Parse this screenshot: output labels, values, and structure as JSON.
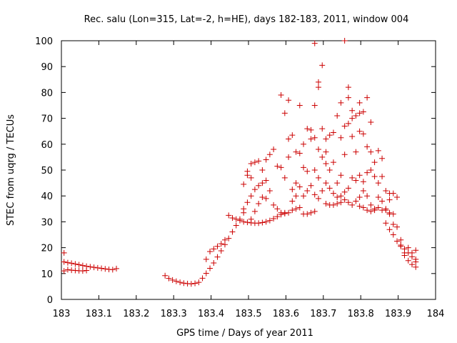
{
  "chart_data": {
    "type": "scatter",
    "title": "Rec. salu (Lon=315, Lat=-2, h=HE), days 182-183, 2011, window 004",
    "xlabel": "GPS time / Days of year 2011",
    "ylabel": "STEC from uqrg / TECUs",
    "xlim": [
      183,
      184
    ],
    "ylim": [
      0,
      100
    ],
    "xticks": [
      183,
      183.1,
      183.2,
      183.3,
      183.4,
      183.5,
      183.6,
      183.7,
      183.8,
      183.9,
      184
    ],
    "xtick_labels": [
      "183",
      "183.1",
      "183.2",
      "183.3",
      "183.4",
      "183.5",
      "183.6",
      "183.7",
      "183.8",
      "183.9",
      "184"
    ],
    "yticks": [
      0,
      10,
      20,
      30,
      40,
      50,
      60,
      70,
      80,
      90,
      100
    ],
    "ytick_labels": [
      "0",
      "10",
      "20",
      "30",
      "40",
      "50",
      "60",
      "70",
      "80",
      "90",
      "100"
    ],
    "grid": false,
    "marker": "+",
    "color": "#cc0000",
    "series": [
      {
        "name": "STEC",
        "points": [
          [
            183.007,
            18
          ],
          [
            183.007,
            14.5
          ],
          [
            183.007,
            11
          ],
          [
            183.017,
            14.2
          ],
          [
            183.017,
            11.5
          ],
          [
            183.027,
            14
          ],
          [
            183.027,
            11.3
          ],
          [
            183.037,
            13.7
          ],
          [
            183.037,
            11.2
          ],
          [
            183.047,
            13.4
          ],
          [
            183.047,
            11.1
          ],
          [
            183.057,
            13.1
          ],
          [
            183.057,
            11
          ],
          [
            183.067,
            12.8
          ],
          [
            183.067,
            11.2
          ],
          [
            183.077,
            12.6
          ],
          [
            183.087,
            12.4
          ],
          [
            183.097,
            12.2
          ],
          [
            183.107,
            12
          ],
          [
            183.117,
            11.8
          ],
          [
            183.127,
            11.6
          ],
          [
            183.137,
            11.5
          ],
          [
            183.147,
            11.9
          ],
          [
            183.277,
            9.2
          ],
          [
            183.287,
            8.1
          ],
          [
            183.297,
            7.5
          ],
          [
            183.307,
            7
          ],
          [
            183.317,
            6.6
          ],
          [
            183.327,
            6.3
          ],
          [
            183.337,
            6.1
          ],
          [
            183.347,
            6
          ],
          [
            183.357,
            6.2
          ],
          [
            183.367,
            6.6
          ],
          [
            183.377,
            8.2
          ],
          [
            183.387,
            10.1
          ],
          [
            183.397,
            12
          ],
          [
            183.407,
            14.1
          ],
          [
            183.417,
            16.4
          ],
          [
            183.427,
            18.8
          ],
          [
            183.437,
            21.2
          ],
          [
            183.447,
            23.6
          ],
          [
            183.457,
            26.1
          ],
          [
            183.467,
            28.6
          ],
          [
            183.477,
            31
          ],
          [
            183.487,
            33.5
          ],
          [
            183.387,
            15.5
          ],
          [
            183.397,
            18.5
          ],
          [
            183.407,
            19.5
          ],
          [
            183.417,
            20.5
          ],
          [
            183.427,
            21.5
          ],
          [
            183.437,
            23
          ],
          [
            183.447,
            32.5
          ],
          [
            183.457,
            31.5
          ],
          [
            183.467,
            31
          ],
          [
            183.477,
            30.5
          ],
          [
            183.487,
            30
          ],
          [
            183.497,
            29.8
          ],
          [
            183.507,
            29.6
          ],
          [
            183.517,
            29.5
          ],
          [
            183.527,
            29.5
          ],
          [
            183.537,
            29.7
          ],
          [
            183.547,
            30
          ],
          [
            183.557,
            30.5
          ],
          [
            183.567,
            31.2
          ],
          [
            183.577,
            32
          ],
          [
            183.587,
            32.8
          ],
          [
            183.597,
            33.5
          ],
          [
            183.487,
            35
          ],
          [
            183.497,
            37.5
          ],
          [
            183.507,
            40
          ],
          [
            183.517,
            42.5
          ],
          [
            183.527,
            44
          ],
          [
            183.537,
            45
          ],
          [
            183.547,
            46
          ],
          [
            183.487,
            44.5
          ],
          [
            183.497,
            48
          ],
          [
            183.497,
            49.5
          ],
          [
            183.507,
            47
          ],
          [
            183.507,
            52.5
          ],
          [
            183.517,
            53
          ],
          [
            183.527,
            53.5
          ],
          [
            183.537,
            50
          ],
          [
            183.547,
            54
          ],
          [
            183.557,
            56
          ],
          [
            183.567,
            58
          ],
          [
            183.577,
            51.5
          ],
          [
            183.587,
            51
          ],
          [
            183.587,
            79
          ],
          [
            183.597,
            72
          ],
          [
            183.597,
            47
          ],
          [
            183.607,
            77
          ],
          [
            183.607,
            55
          ],
          [
            183.507,
            31
          ],
          [
            183.517,
            34
          ],
          [
            183.527,
            37
          ],
          [
            183.537,
            39.5
          ],
          [
            183.547,
            39
          ],
          [
            183.557,
            42
          ],
          [
            183.567,
            36.5
          ],
          [
            183.577,
            35
          ],
          [
            183.587,
            33.5
          ],
          [
            183.597,
            33.2
          ],
          [
            183.607,
            33.5
          ],
          [
            183.617,
            34.5
          ],
          [
            183.627,
            35
          ],
          [
            183.637,
            35.5
          ],
          [
            183.647,
            33
          ],
          [
            183.657,
            33
          ],
          [
            183.667,
            33.5
          ],
          [
            183.677,
            34
          ],
          [
            183.607,
            62
          ],
          [
            183.617,
            63.5
          ],
          [
            183.617,
            38
          ],
          [
            183.627,
            57
          ],
          [
            183.627,
            40
          ],
          [
            183.637,
            56.5
          ],
          [
            183.637,
            75
          ],
          [
            183.647,
            60
          ],
          [
            183.647,
            51
          ],
          [
            183.657,
            66
          ],
          [
            183.657,
            49.5
          ],
          [
            183.667,
            65.5
          ],
          [
            183.667,
            62
          ],
          [
            183.677,
            99
          ],
          [
            183.677,
            75
          ],
          [
            183.677,
            62.5
          ],
          [
            183.677,
            50
          ],
          [
            183.687,
            84
          ],
          [
            183.687,
            82
          ],
          [
            183.687,
            58
          ],
          [
            183.687,
            47
          ],
          [
            183.697,
            90.5
          ],
          [
            183.697,
            66
          ],
          [
            183.697,
            55
          ],
          [
            183.617,
            42.5
          ],
          [
            183.627,
            45
          ],
          [
            183.637,
            43.5
          ],
          [
            183.647,
            40
          ],
          [
            183.657,
            42
          ],
          [
            183.667,
            44
          ],
          [
            183.677,
            40.5
          ],
          [
            183.687,
            39
          ],
          [
            183.697,
            42
          ],
          [
            183.707,
            37
          ],
          [
            183.717,
            36.5
          ],
          [
            183.727,
            36.5
          ],
          [
            183.737,
            37
          ],
          [
            183.747,
            37.5
          ],
          [
            183.707,
            62
          ],
          [
            183.707,
            57
          ],
          [
            183.707,
            52.5
          ],
          [
            183.717,
            63.5
          ],
          [
            183.717,
            50
          ],
          [
            183.727,
            64.5
          ],
          [
            183.727,
            53
          ],
          [
            183.737,
            71
          ],
          [
            183.737,
            45
          ],
          [
            183.747,
            76
          ],
          [
            183.747,
            62.5
          ],
          [
            183.747,
            48
          ],
          [
            183.757,
            100
          ],
          [
            183.757,
            67
          ],
          [
            183.757,
            56
          ],
          [
            183.767,
            82
          ],
          [
            183.767,
            78
          ],
          [
            183.767,
            68
          ],
          [
            183.777,
            73
          ],
          [
            183.777,
            70
          ],
          [
            183.777,
            63
          ],
          [
            183.787,
            71
          ],
          [
            183.787,
            57
          ],
          [
            183.797,
            76
          ],
          [
            183.797,
            72
          ],
          [
            183.797,
            65
          ],
          [
            183.807,
            72.5
          ],
          [
            183.807,
            64
          ],
          [
            183.817,
            78
          ],
          [
            183.817,
            59
          ],
          [
            183.827,
            68.5
          ],
          [
            183.827,
            57
          ],
          [
            183.837,
            53
          ],
          [
            183.847,
            57.5
          ],
          [
            183.857,
            54.5
          ],
          [
            183.707,
            45
          ],
          [
            183.717,
            43
          ],
          [
            183.727,
            41
          ],
          [
            183.737,
            39.5
          ],
          [
            183.747,
            40
          ],
          [
            183.757,
            41.5
          ],
          [
            183.767,
            43
          ],
          [
            183.777,
            47
          ],
          [
            183.787,
            46
          ],
          [
            183.797,
            48
          ],
          [
            183.807,
            45.5
          ],
          [
            183.817,
            49
          ],
          [
            183.827,
            50
          ],
          [
            183.837,
            47.5
          ],
          [
            183.847,
            45
          ],
          [
            183.857,
            47.5
          ],
          [
            183.867,
            42
          ],
          [
            183.877,
            41
          ],
          [
            183.887,
            41
          ],
          [
            183.757,
            38.5
          ],
          [
            183.767,
            37.5
          ],
          [
            183.777,
            36.5
          ],
          [
            183.787,
            38
          ],
          [
            183.797,
            39.5
          ],
          [
            183.807,
            42
          ],
          [
            183.817,
            40
          ],
          [
            183.827,
            36.5
          ],
          [
            183.837,
            35
          ],
          [
            183.847,
            35.5
          ],
          [
            183.857,
            34.5
          ],
          [
            183.867,
            35
          ],
          [
            183.877,
            33.5
          ],
          [
            183.797,
            36
          ],
          [
            183.807,
            35.5
          ],
          [
            183.817,
            34.5
          ],
          [
            183.827,
            34
          ],
          [
            183.837,
            34.5
          ],
          [
            183.847,
            39.5
          ],
          [
            183.857,
            38
          ],
          [
            183.867,
            34.5
          ],
          [
            183.877,
            33
          ],
          [
            183.867,
            29.5
          ],
          [
            183.877,
            27
          ],
          [
            183.887,
            25
          ],
          [
            183.897,
            22.5
          ],
          [
            183.907,
            21
          ],
          [
            183.917,
            19.5
          ],
          [
            183.927,
            18
          ],
          [
            183.937,
            16.5
          ],
          [
            183.947,
            14.5
          ],
          [
            183.877,
            38.5
          ],
          [
            183.887,
            33
          ],
          [
            183.887,
            29
          ],
          [
            183.897,
            39.5
          ],
          [
            183.897,
            28
          ],
          [
            183.907,
            23
          ],
          [
            183.907,
            20.5
          ],
          [
            183.917,
            18
          ],
          [
            183.917,
            17
          ],
          [
            183.927,
            20
          ],
          [
            183.927,
            15
          ],
          [
            183.937,
            18
          ],
          [
            183.937,
            13.5
          ],
          [
            183.947,
            19
          ],
          [
            183.947,
            15.5
          ],
          [
            183.947,
            12.5
          ]
        ]
      }
    ]
  }
}
